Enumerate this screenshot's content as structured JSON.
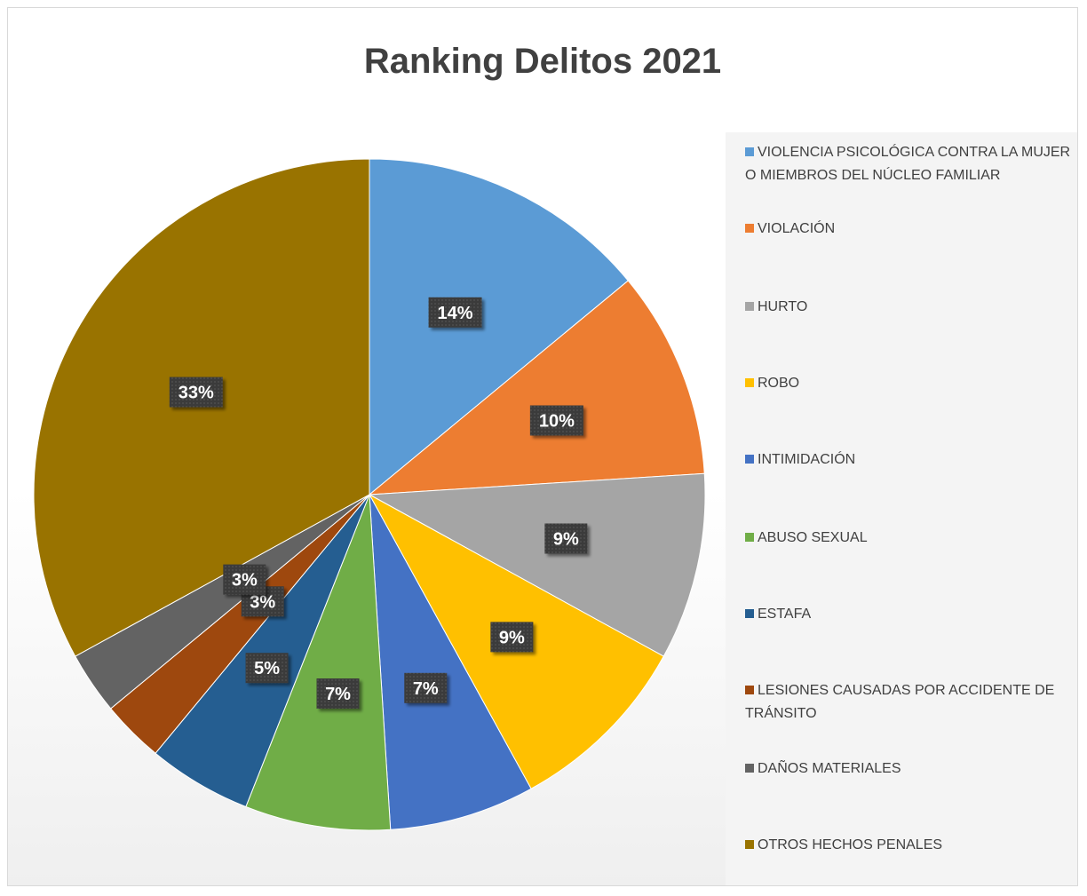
{
  "chart_data": {
    "type": "pie",
    "title": "Ranking Delitos 2021",
    "legend_position": "right",
    "slices": [
      {
        "label": "VIOLENCIA PSICOLÓGICA CONTRA LA MUJER O MIEMBROS DEL NÚCLEO FAMILIAR",
        "value": 14,
        "display": "14%",
        "color": "#5B9BD5"
      },
      {
        "label": "VIOLACIÓN",
        "value": 10,
        "display": "10%",
        "color": "#ED7D31"
      },
      {
        "label": "HURTO",
        "value": 9,
        "display": "9%",
        "color": "#A5A5A5"
      },
      {
        "label": "ROBO",
        "value": 9,
        "display": "9%",
        "color": "#FFC000"
      },
      {
        "label": "INTIMIDACIÓN",
        "value": 7,
        "display": "7%",
        "color": "#4472C4"
      },
      {
        "label": "ABUSO SEXUAL",
        "value": 7,
        "display": "7%",
        "color": "#70AD47"
      },
      {
        "label": "ESTAFA",
        "value": 5,
        "display": "5%",
        "color": "#255E91"
      },
      {
        "label": "LESIONES CAUSADAS POR ACCIDENTE DE TRÁNSITO",
        "value": 3,
        "display": "3%",
        "color": "#9E480E"
      },
      {
        "label": "DAÑOS MATERIALES",
        "value": 3,
        "display": "3%",
        "color": "#636363"
      },
      {
        "label": "OTROS HECHOS PENALES",
        "value": 33,
        "display": "33%",
        "color": "#997300"
      }
    ]
  }
}
